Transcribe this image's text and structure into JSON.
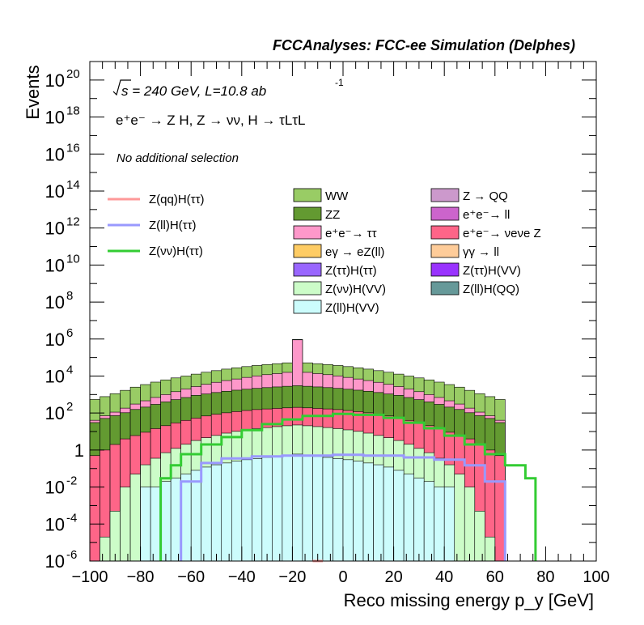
{
  "header": {
    "title": "FCCAnalyses: FCC-ee Simulation (Delphes)"
  },
  "annotations": {
    "energy": "s = 240 GeV, L=10.8 ab",
    "lumi_exp": "-1",
    "process": "e⁺e⁻ → Z H, Z → νν, H → τLτL",
    "selection": "No additional selection"
  },
  "chart_data": {
    "type": "bar",
    "xlabel": "Reco missing energy p_y [GeV]",
    "ylabel": "Events",
    "xlim": [
      -100,
      100
    ],
    "ylim": [
      1e-06,
      1e+21
    ],
    "log_y": true,
    "x_ticks": [
      "−100",
      "−80",
      "−60",
      "−40",
      "−20",
      "0",
      "20",
      "40",
      "60",
      "80",
      "100"
    ],
    "y_ticks": [
      {
        "base": "10",
        "exp": "-6"
      },
      {
        "base": "10",
        "exp": "-4"
      },
      {
        "base": "10",
        "exp": "-2"
      },
      {
        "base": "1",
        "exp": ""
      },
      {
        "base": "10",
        "exp": "2"
      },
      {
        "base": "10",
        "exp": "4"
      },
      {
        "base": "10",
        "exp": "6"
      },
      {
        "base": "10",
        "exp": "8"
      },
      {
        "base": "10",
        "exp": "10"
      },
      {
        "base": "10",
        "exp": "12"
      },
      {
        "base": "10",
        "exp": "14"
      },
      {
        "base": "10",
        "exp": "16"
      },
      {
        "base": "10",
        "exp": "18"
      },
      {
        "base": "10",
        "exp": "20"
      }
    ],
    "bin_width": 4,
    "stacked_backgrounds": [
      {
        "name": "Z(ll)H(VV)",
        "color": "#ccfcfc",
        "values": [
          0,
          0,
          0,
          0,
          0,
          0.01,
          0.01,
          0.02,
          0.03,
          0.05,
          0.08,
          0.12,
          0.16,
          0.2,
          0.25,
          0.3,
          0.35,
          0.4,
          0.45,
          0.5,
          0.6,
          0.5,
          0.45,
          0.4,
          0.35,
          0.3,
          0.25,
          0.2,
          0.16,
          0.12,
          0.08,
          0.05,
          0.03,
          0.02,
          0.01,
          0.01,
          0,
          0,
          0,
          0,
          0,
          0,
          0,
          0,
          0,
          0,
          0,
          0,
          0,
          0
        ]
      },
      {
        "name": "Z(νν)H(VV)",
        "color": "#ccfcc8",
        "values": [
          1e-06,
          2e-05,
          0.0005,
          0.01,
          0.05,
          0.15,
          0.35,
          0.7,
          1.2,
          2,
          3.2,
          4.5,
          6,
          8,
          10,
          12,
          14,
          16,
          18,
          20,
          22,
          20,
          18,
          16,
          14,
          12,
          10,
          8,
          6,
          4.5,
          3.2,
          2,
          1.2,
          0.7,
          0.35,
          0.15,
          0.05,
          0.01,
          0.0005,
          2e-05,
          1e-06,
          0,
          0,
          0,
          0,
          0,
          0,
          0,
          0,
          0
        ]
      },
      {
        "name": "e⁺e⁻→ νeνe Z",
        "color": "#fe6588",
        "values": [
          0.5,
          1,
          2,
          4,
          6,
          9,
          14,
          20,
          28,
          38,
          50,
          65,
          80,
          95,
          110,
          125,
          140,
          150,
          160,
          170,
          180,
          170,
          160,
          150,
          140,
          125,
          110,
          95,
          80,
          65,
          50,
          38,
          28,
          20,
          14,
          9,
          6,
          4,
          2,
          1,
          0.5,
          0,
          0,
          0,
          0,
          0,
          0,
          0,
          0,
          0
        ]
      },
      {
        "name": "ZZ",
        "color": "#639a31",
        "values": [
          30,
          50,
          70,
          100,
          150,
          200,
          280,
          380,
          500,
          650,
          850,
          1000,
          1200,
          1400,
          1600,
          1800,
          2000,
          2200,
          2400,
          2600,
          2800,
          2600,
          2400,
          2200,
          2000,
          1800,
          1600,
          1400,
          1200,
          1000,
          850,
          650,
          500,
          380,
          280,
          200,
          150,
          100,
          70,
          50,
          30,
          0,
          0,
          0,
          0,
          0,
          0,
          0,
          0,
          0
        ]
      },
      {
        "name": "e⁺e⁻→ ττ",
        "color": "#fe98ca",
        "values": [
          10,
          20,
          40,
          80,
          150,
          250,
          400,
          600,
          900,
          1300,
          1800,
          2500,
          3300,
          4200,
          5200,
          6500,
          8000,
          9500,
          11000,
          13000,
          900000,
          13000,
          11000,
          9500,
          8000,
          6500,
          5200,
          4200,
          3300,
          2500,
          1800,
          1300,
          900,
          600,
          400,
          250,
          150,
          80,
          40,
          20,
          10,
          0,
          0,
          0,
          0,
          0,
          0,
          0,
          0,
          0
        ]
      },
      {
        "name": "WW",
        "color": "#99cc65",
        "values": [
          500,
          700,
          1000,
          1500,
          2200,
          3000,
          4000,
          5200,
          6500,
          8000,
          10000,
          12500,
          15000,
          18000,
          21000,
          24000,
          27000,
          30000,
          33000,
          36000,
          40000,
          36000,
          33000,
          30000,
          27000,
          24000,
          21000,
          18000,
          15000,
          12500,
          10000,
          8000,
          6500,
          5200,
          4000,
          3000,
          2200,
          1500,
          1000,
          700,
          500,
          0,
          0,
          0,
          0,
          0,
          0,
          0,
          0,
          0
        ]
      }
    ],
    "signals": [
      {
        "name": "Z(qq)H(ττ)",
        "color": "#fe9999"
      },
      {
        "name": "Z(ll)H(ττ)",
        "color": "#9999fe"
      },
      {
        "name": "Z(νν)H(ττ)",
        "color": "#33cc33"
      }
    ],
    "legend_backgrounds": [
      {
        "name": "WW",
        "color": "#99cc65"
      },
      {
        "name": "Z → QQ",
        "color": "#cc99cc"
      },
      {
        "name": "ZZ",
        "color": "#639a31"
      },
      {
        "name": "e⁺e⁻→ ll",
        "color": "#cc64cc"
      },
      {
        "name": "e⁺e⁻→ ττ",
        "color": "#fe98ca"
      },
      {
        "name": "e⁺e⁻→ νeνe Z",
        "color": "#fe6588"
      },
      {
        "name": "eγ → eZ(ll)",
        "color": "#fecc64"
      },
      {
        "name": "γγ → ll",
        "color": "#fecc99"
      },
      {
        "name": "Z(ττ)H(ττ)",
        "color": "#9966fe"
      },
      {
        "name": "Z(ττ)H(VV)",
        "color": "#9933fe"
      },
      {
        "name": "Z(νν)H(VV)",
        "color": "#ccfcc8"
      },
      {
        "name": "Z(ll)H(QQ)",
        "color": "#669999"
      },
      {
        "name": "Z(ll)H(VV)",
        "color": "#ccfcfc"
      }
    ]
  }
}
